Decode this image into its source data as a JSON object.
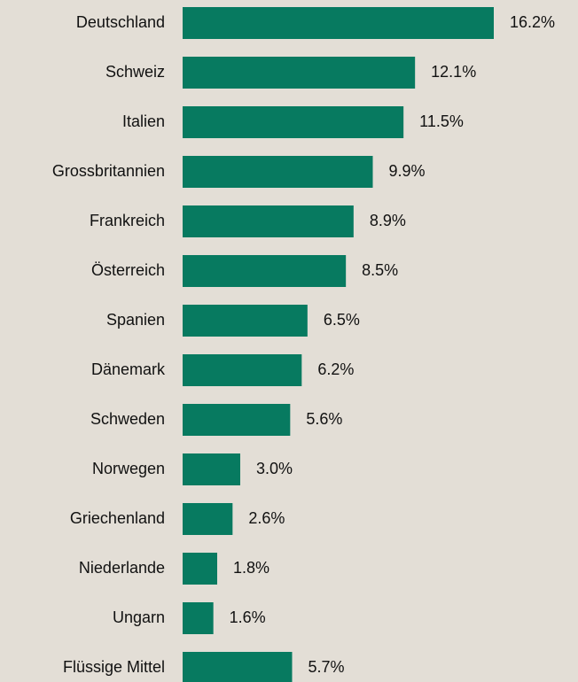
{
  "chart_data": {
    "type": "bar",
    "orientation": "horizontal",
    "categories": [
      "Deutschland",
      "Schweiz",
      "Italien",
      "Grossbritannien",
      "Frankreich",
      "Österreich",
      "Spanien",
      "Dänemark",
      "Schweden",
      "Norwegen",
      "Griechenland",
      "Niederlande",
      "Ungarn",
      "Flüssige Mittel"
    ],
    "values": [
      16.2,
      12.1,
      11.5,
      9.9,
      8.9,
      8.5,
      6.5,
      6.2,
      5.6,
      3.0,
      2.6,
      1.8,
      1.6,
      5.7
    ],
    "value_labels": [
      "16.2%",
      "12.1%",
      "11.5%",
      "9.9%",
      "8.9%",
      "8.5%",
      "6.5%",
      "6.2%",
      "5.6%",
      "3.0%",
      "2.6%",
      "1.8%",
      "1.6%",
      "5.7%"
    ],
    "color": "#077a60"
  }
}
